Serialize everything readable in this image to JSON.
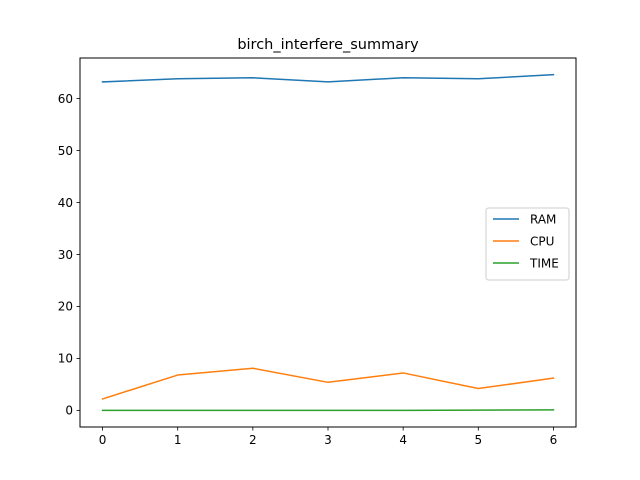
{
  "chart_data": {
    "type": "line",
    "title": "birch_interfere_summary",
    "xlabel": "",
    "ylabel": "",
    "x": [
      0,
      1,
      2,
      3,
      4,
      5,
      6
    ],
    "xlim": [
      -0.3,
      6.3
    ],
    "ylim": [
      -3.2,
      67.8
    ],
    "xticks": [
      0,
      1,
      2,
      3,
      4,
      5,
      6
    ],
    "yticks": [
      0,
      10,
      20,
      30,
      40,
      50,
      60
    ],
    "grid": false,
    "legend_position": "center-right",
    "series": [
      {
        "name": "RAM",
        "color": "#1f77b4",
        "values": [
          63.2,
          63.8,
          64.0,
          63.2,
          64.0,
          63.8,
          64.6
        ]
      },
      {
        "name": "CPU",
        "color": "#ff7f0e",
        "values": [
          2.2,
          6.8,
          8.1,
          5.4,
          7.2,
          4.2,
          6.2
        ]
      },
      {
        "name": "TIME",
        "color": "#2ca02c",
        "values": [
          0.0,
          0.0,
          0.0,
          0.0,
          0.0,
          0.05,
          0.1
        ]
      }
    ]
  }
}
